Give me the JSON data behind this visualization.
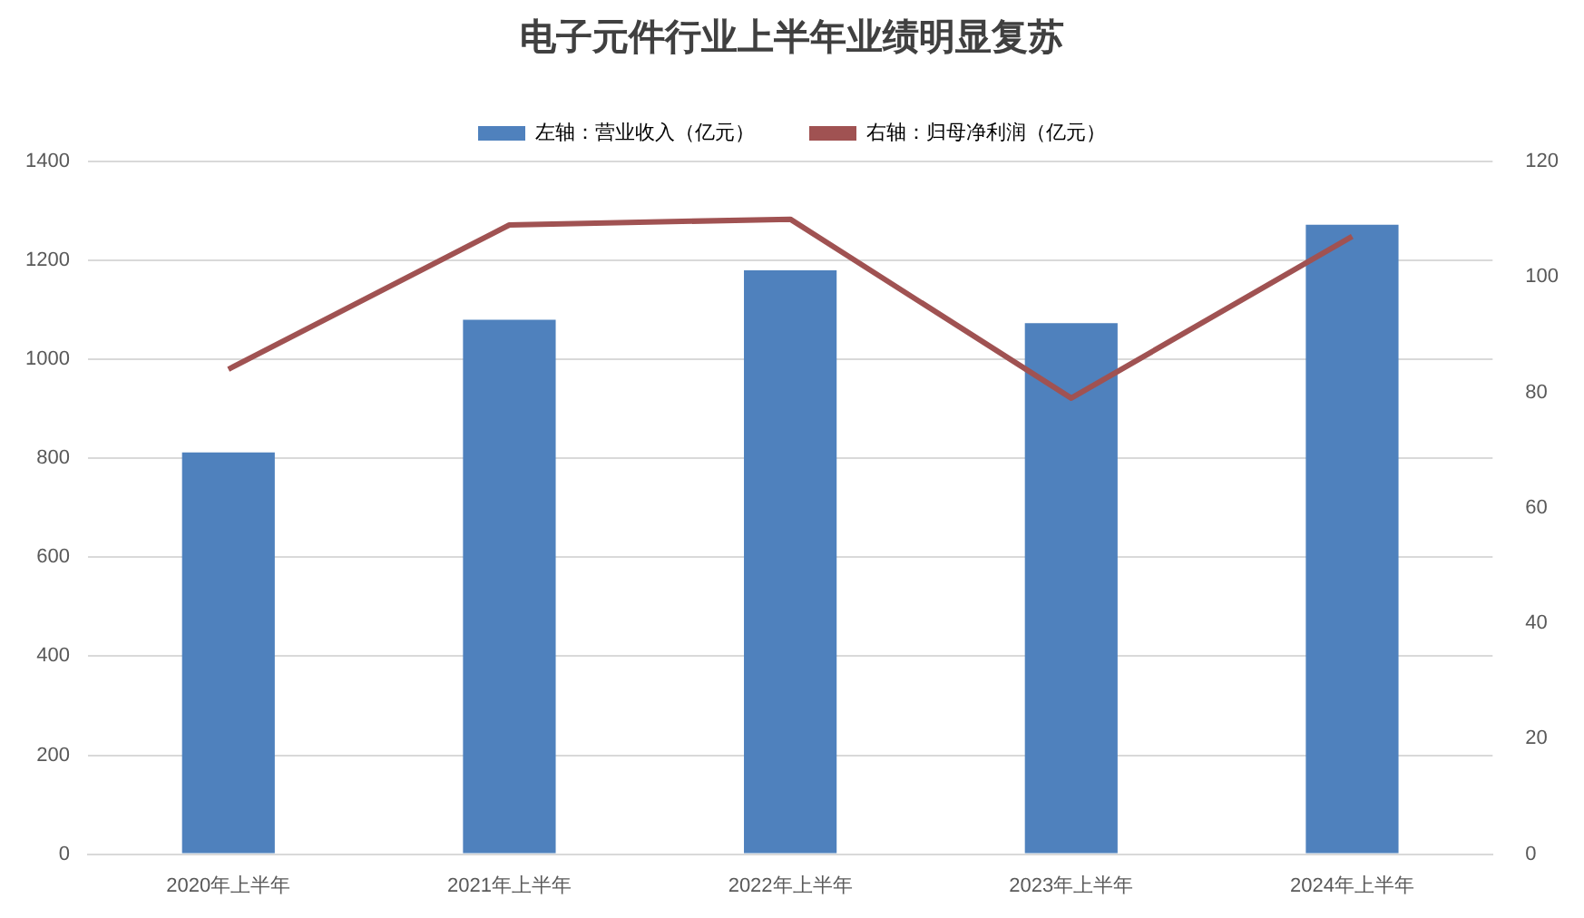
{
  "chart_data": {
    "type": "bar",
    "title": "电子元件行业上半年业绩明显复苏",
    "categories": [
      "2020年上半年",
      "2021年上半年",
      "2022年上半年",
      "2023年上半年",
      "2024年上半年"
    ],
    "series": [
      {
        "name": "左轴：营业收入（亿元）",
        "color": "#4f81bd",
        "values": [
          812,
          1080,
          1180,
          1073,
          1272
        ]
      },
      {
        "name": "右轴：归母净利润（亿元）",
        "type": "line",
        "axis": "y2",
        "color": "#a05252",
        "values": [
          84,
          109,
          110,
          79,
          107
        ]
      }
    ],
    "ylim": [
      0,
      1400
    ],
    "yticks": [
      0,
      200,
      400,
      600,
      800,
      1000,
      1200,
      1400
    ],
    "y2lim": [
      0,
      120
    ],
    "y2ticks": [
      0,
      20,
      40,
      60,
      80,
      100,
      120
    ],
    "grid": "y",
    "legend": "top",
    "marker": "none"
  }
}
